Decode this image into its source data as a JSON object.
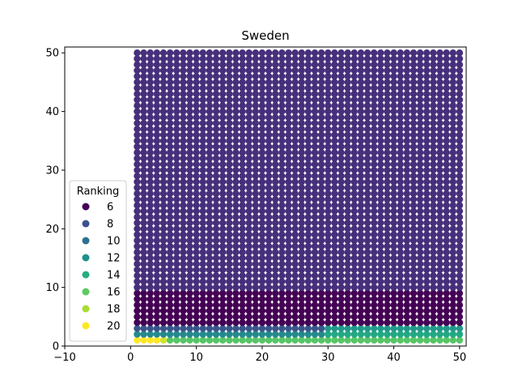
{
  "chart_data": {
    "type": "scatter",
    "title": "Sweden",
    "xlabel": "",
    "ylabel": "",
    "xlim": [
      -10,
      51
    ],
    "ylim": [
      0,
      51
    ],
    "xticks": [
      -10,
      0,
      10,
      20,
      30,
      40,
      50
    ],
    "yticks": [
      0,
      10,
      20,
      30,
      40,
      50
    ],
    "xtick_labels": [
      "−10",
      "0",
      "10",
      "20",
      "30",
      "40",
      "50"
    ],
    "ytick_labels": [
      "0",
      "10",
      "20",
      "30",
      "40",
      "50"
    ],
    "grid": false,
    "color_variable": "Ranking",
    "color_range": [
      5,
      20
    ],
    "colormap": "viridis",
    "grid_points": {
      "x_range": [
        1,
        50
      ],
      "y_range": [
        1,
        50
      ],
      "step": 1,
      "ranking_by_region": [
        {
          "x": [
            1,
            4
          ],
          "y": [
            1,
            1
          ],
          "ranking": 20
        },
        {
          "x": [
            5,
            5
          ],
          "y": [
            1,
            1
          ],
          "ranking": 19
        },
        {
          "x": [
            6,
            50
          ],
          "y": [
            1,
            1
          ],
          "ranking": 16
        },
        {
          "x": [
            1,
            29
          ],
          "y": [
            2,
            2
          ],
          "ranking": 12
        },
        {
          "x": [
            30,
            50
          ],
          "y": [
            2,
            2
          ],
          "ranking": 14
        },
        {
          "x": [
            1,
            29
          ],
          "y": [
            3,
            3
          ],
          "ranking": 9
        },
        {
          "x": [
            30,
            50
          ],
          "y": [
            3,
            3
          ],
          "ranking": 13
        },
        {
          "x": [
            1,
            50
          ],
          "y": [
            4,
            9
          ],
          "ranking": 5
        },
        {
          "x": [
            1,
            50
          ],
          "y": [
            10,
            50
          ],
          "ranking": 7
        }
      ]
    },
    "legend": {
      "title": "Ranking",
      "position": "lower-left",
      "entries": [
        {
          "label": "6",
          "color": "#440154"
        },
        {
          "label": "8",
          "color": "#3b528b"
        },
        {
          "label": "10",
          "color": "#2e6f8e"
        },
        {
          "label": "12",
          "color": "#21918c"
        },
        {
          "label": "14",
          "color": "#27ad81"
        },
        {
          "label": "16",
          "color": "#5ec962"
        },
        {
          "label": "18",
          "color": "#aadc32"
        },
        {
          "label": "20",
          "color": "#fde725"
        }
      ]
    }
  }
}
